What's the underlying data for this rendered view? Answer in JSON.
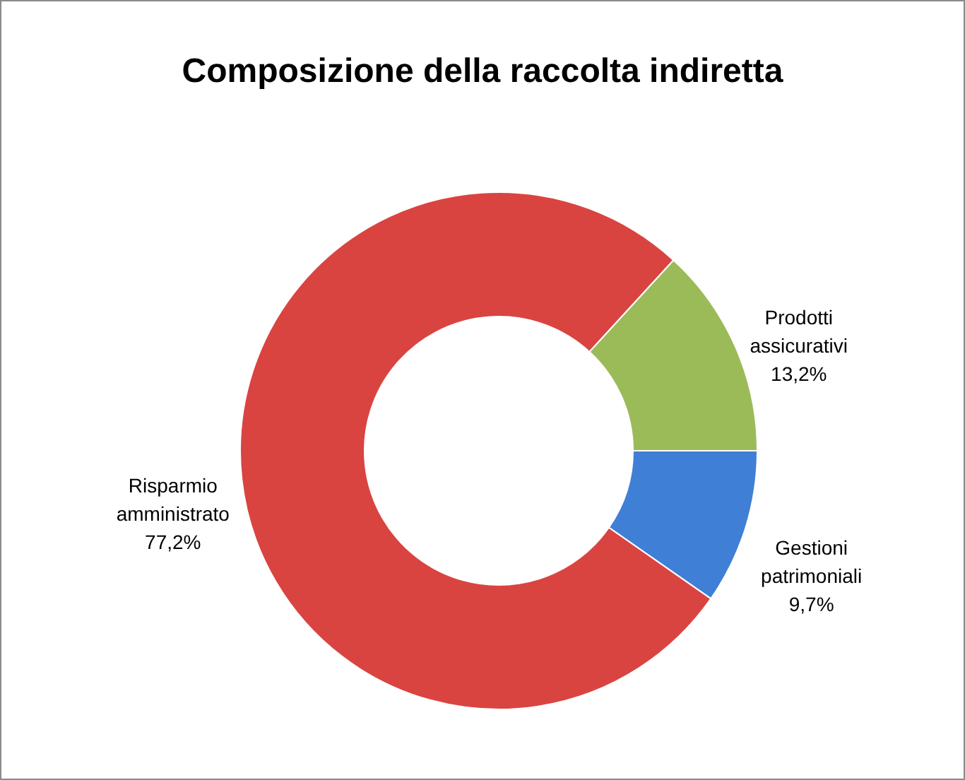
{
  "chart_data": {
    "type": "donut",
    "title": "Composizione della raccolta indiretta",
    "categories": [
      "Gestioni patrimoniali",
      "Risparmio amministrato",
      "Prodotti assicurativi"
    ],
    "values": [
      9.7,
      77.2,
      13.2
    ],
    "colors": [
      "#3f7fd6",
      "#d94441",
      "#9bbb59"
    ],
    "value_labels": [
      "9,7%",
      "77,2%",
      "13,2%"
    ],
    "legend": false
  }
}
